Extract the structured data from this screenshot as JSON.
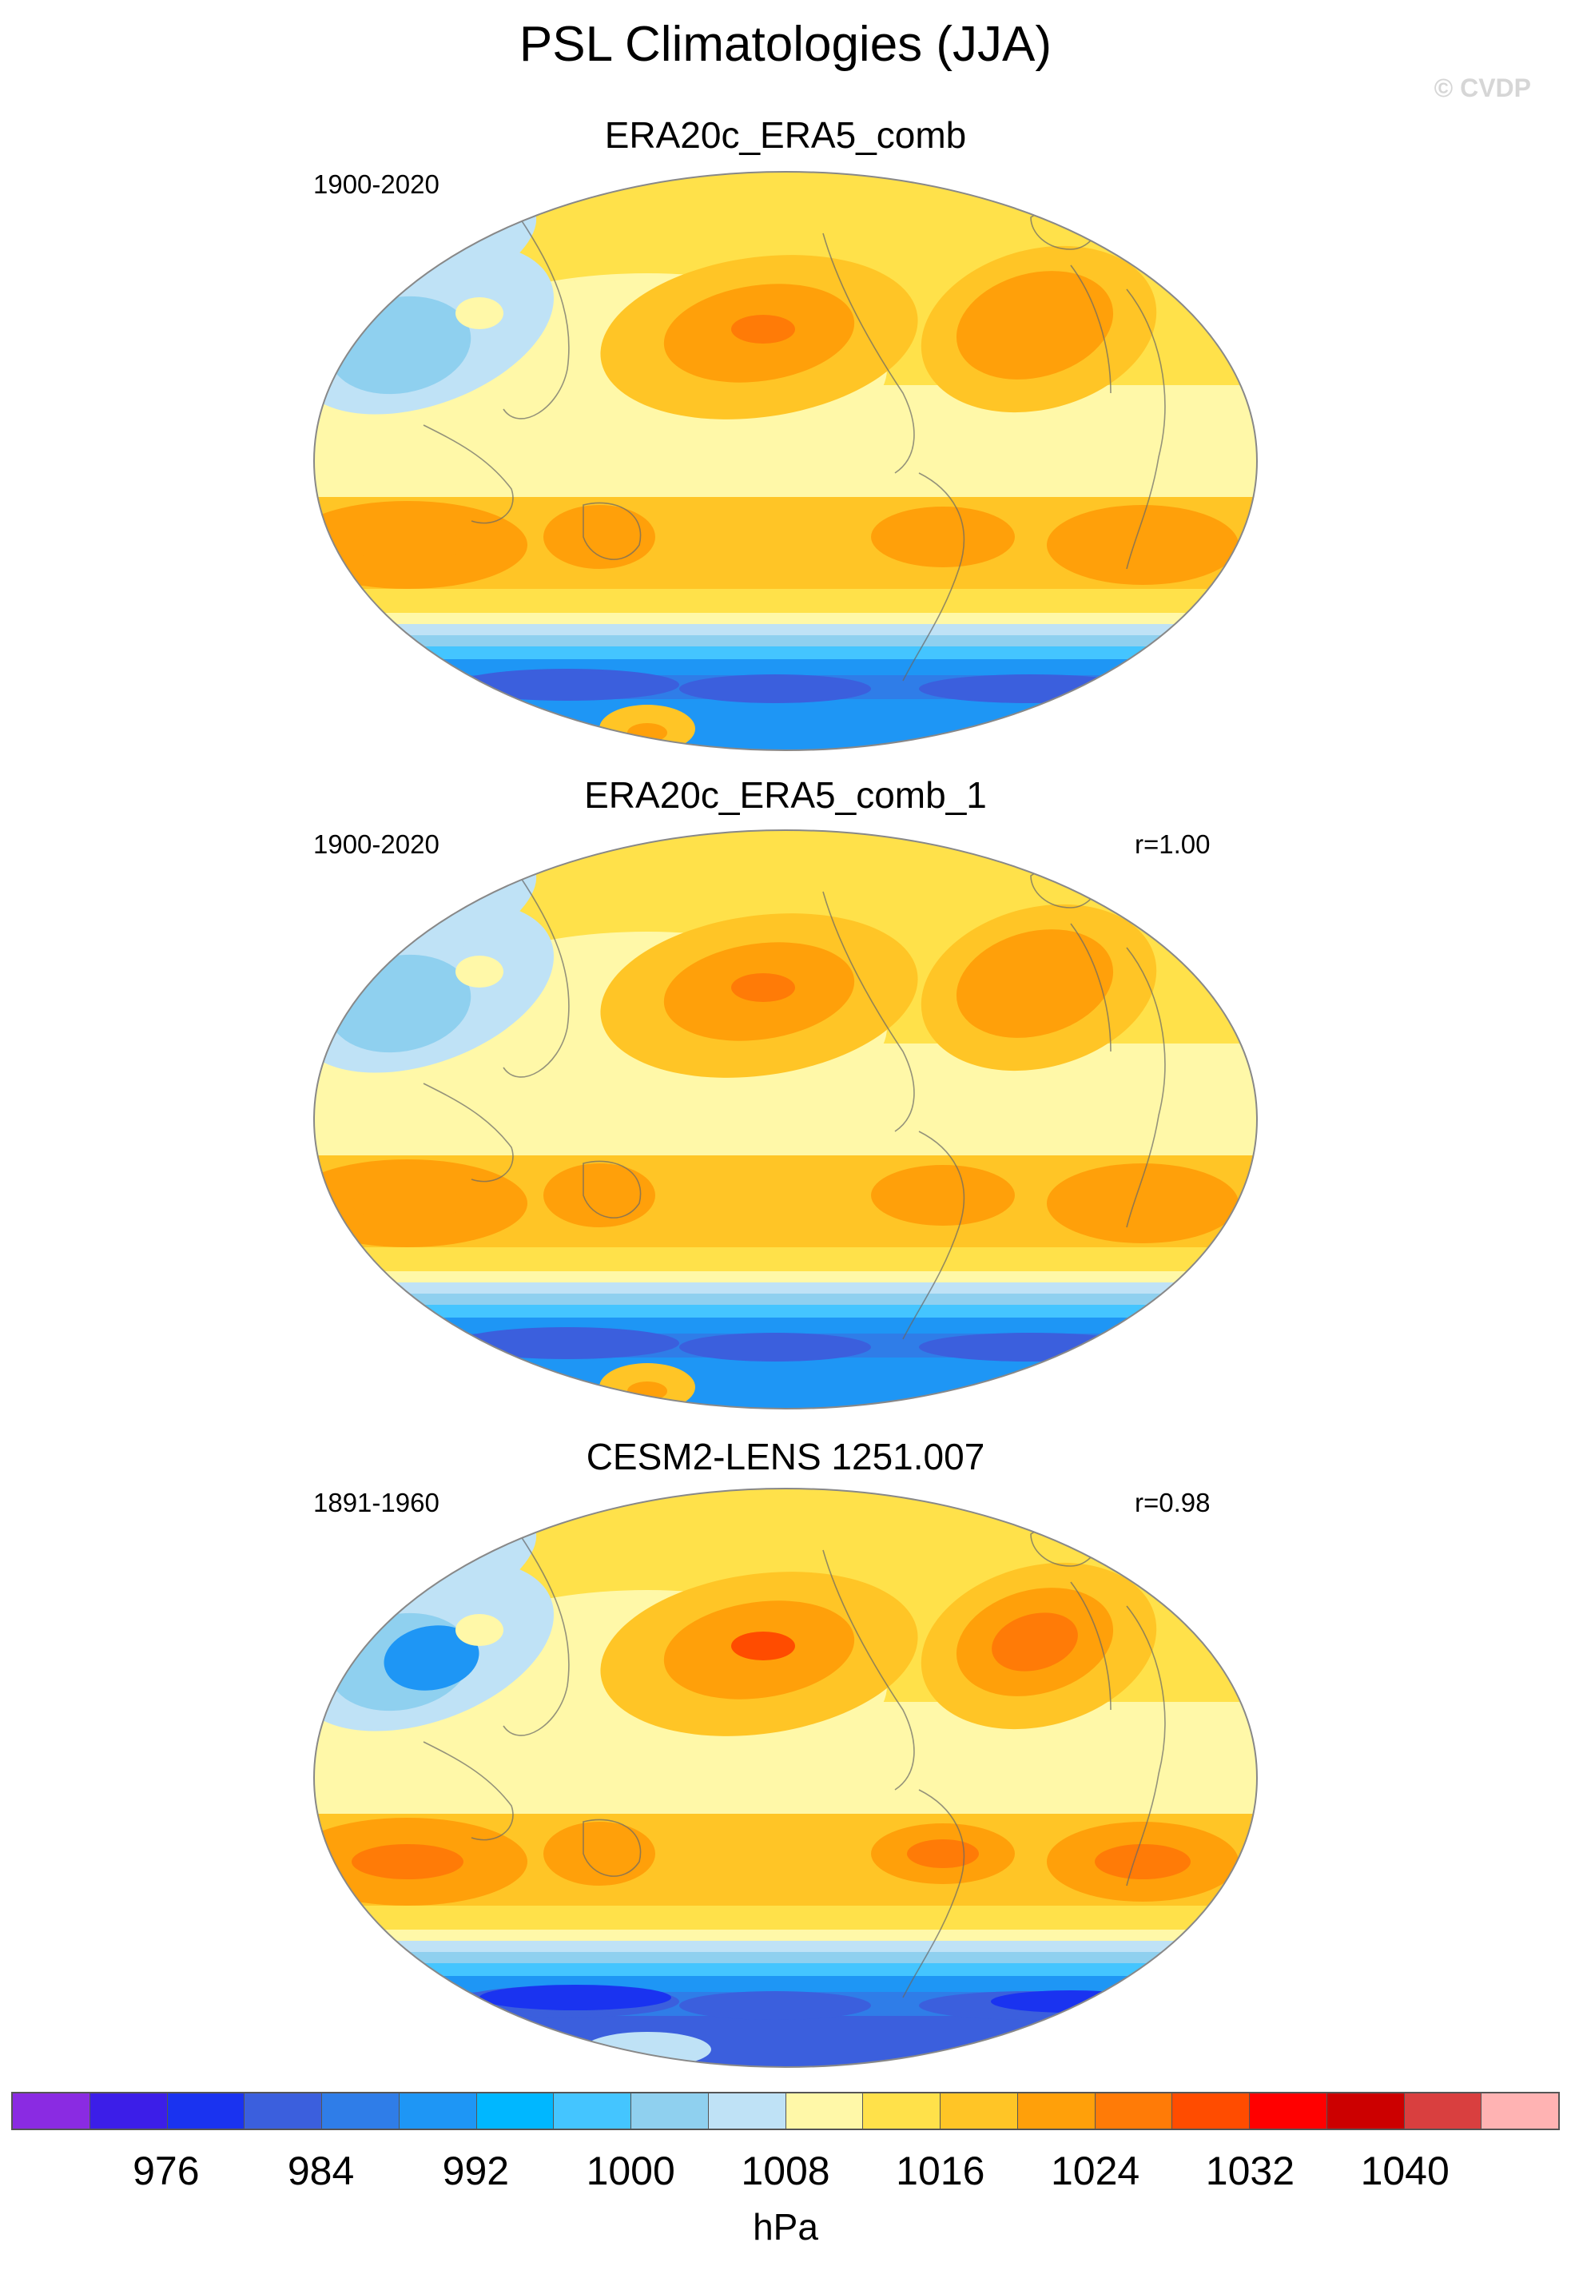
{
  "title": "PSL Climatologies (JJA)",
  "watermark": "© CVDP",
  "panels": [
    {
      "title": "ERA20c_ERA5_comb",
      "period": "1900-2020",
      "correlation": ""
    },
    {
      "title": "ERA20c_ERA5_comb_1",
      "period": "1900-2020",
      "correlation": "r=1.00"
    },
    {
      "title": "CESM2-LENS 1251.007",
      "period": "1891-1960",
      "correlation": "r=0.98"
    }
  ],
  "colorbar": {
    "colors": [
      "#8a2be2",
      "#3c1ee8",
      "#1a33f0",
      "#3b5fdd",
      "#2f7de8",
      "#1e96f5",
      "#00b7ff",
      "#44c5ff",
      "#8fd0ef",
      "#bfe2f6",
      "#fff8a8",
      "#ffe14a",
      "#ffc526",
      "#ffa00a",
      "#ff7b07",
      "#ff4c00",
      "#ff0000",
      "#cc0000",
      "#d93f3f",
      "#ffb3b3"
    ],
    "tick_labels": [
      "976",
      "984",
      "992",
      "1000",
      "1008",
      "1016",
      "1024",
      "1032",
      "1040"
    ],
    "units": "hPa"
  }
}
